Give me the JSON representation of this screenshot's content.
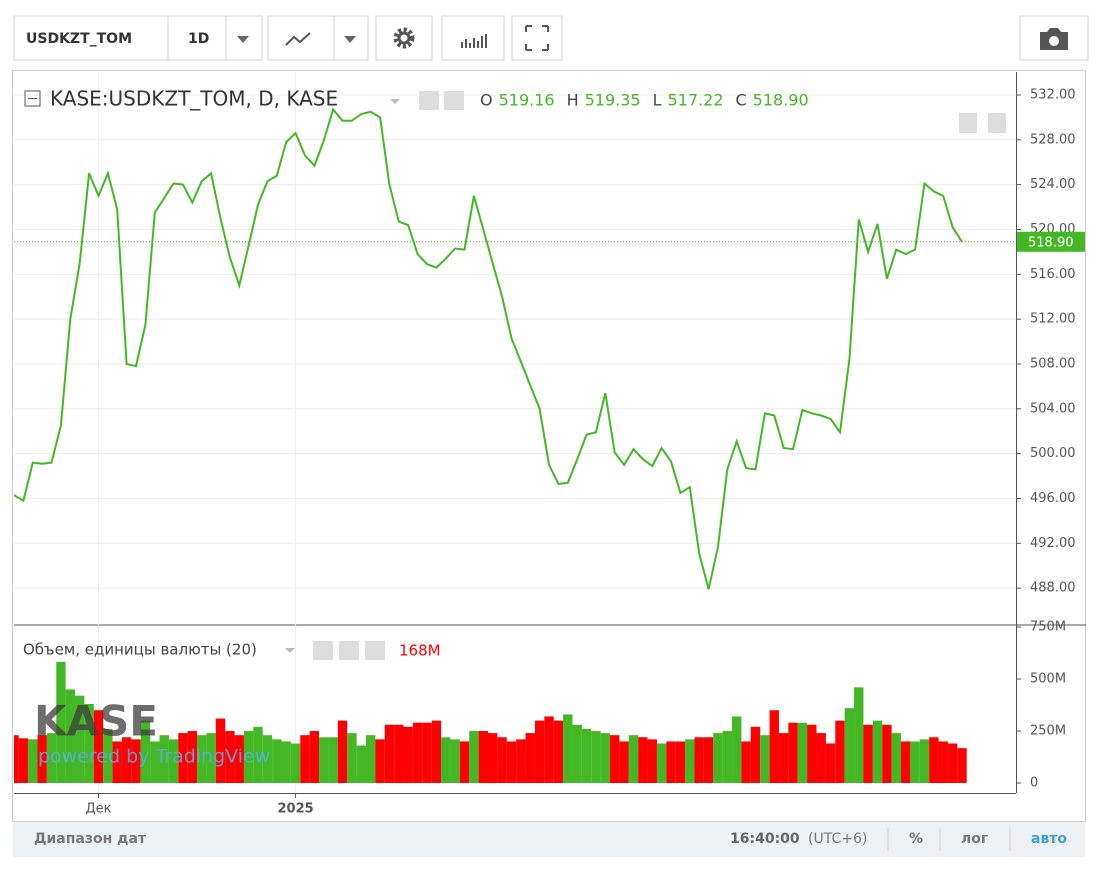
{
  "toolbar": {
    "symbol": "USDKZT_TOM",
    "interval": "1D"
  },
  "chart_data": [
    {
      "type": "line",
      "title": "KASE:USDKZT_TOM, D, KASE",
      "legend_ohlc": [
        {
          "key": "O",
          "value": "519.16"
        },
        {
          "key": "H",
          "value": "519.35"
        },
        {
          "key": "L",
          "value": "517.22"
        },
        {
          "key": "C",
          "value": "518.90"
        }
      ],
      "categories": [
        null,
        null,
        null,
        null,
        null,
        null,
        null,
        null,
        null,
        "Дек",
        null,
        null,
        null,
        null,
        null,
        null,
        null,
        null,
        null,
        null,
        null,
        null,
        null,
        null,
        null,
        null,
        null,
        null,
        null,
        null,
        "2025",
        null,
        null,
        null,
        null,
        null,
        null,
        null,
        null,
        null,
        null,
        null,
        null,
        null,
        null,
        null,
        null,
        null,
        null,
        null,
        null,
        null,
        null,
        null,
        null,
        null,
        null,
        null,
        null,
        null,
        null,
        null,
        null,
        null,
        null,
        null,
        null,
        null,
        null,
        null,
        null,
        null,
        null,
        null,
        null,
        null,
        null,
        null,
        null,
        null,
        null,
        null,
        null,
        null,
        null,
        null,
        null,
        null,
        null,
        null,
        null,
        null,
        null,
        null,
        null,
        null,
        null,
        null,
        null,
        null,
        null,
        null
      ],
      "series": [
        {
          "color": "#44b824",
          "values": [
            496.3,
            495.8,
            499.2,
            499.1,
            499.2,
            502.5,
            512,
            517,
            525,
            523,
            525,
            521.8,
            508,
            507.8,
            511.5,
            521.5,
            522.8,
            524.1,
            524,
            522.4,
            524.3,
            525,
            521,
            517.5,
            515,
            518.6,
            522.2,
            524.3,
            524.8,
            527.8,
            528.6,
            526.6,
            525.7,
            527.9,
            530.7,
            529.7,
            529.7,
            530.3,
            530.5,
            530,
            524,
            520.7,
            520.4,
            517.8,
            516.9,
            516.6,
            517.4,
            518.3,
            518.2,
            523,
            520,
            517,
            514,
            510.3,
            508.2,
            506.1,
            504,
            499,
            497.3,
            497.4,
            499.5,
            501.7,
            501.9,
            505.4,
            500.1,
            499,
            500.4,
            499.5,
            498.9,
            500.5,
            499.3,
            496.5,
            497,
            491.1,
            487.9,
            491.7,
            498.6,
            501.1,
            498.7,
            498.6,
            503.6,
            503.4,
            500.5,
            500.4,
            503.9,
            503.6,
            503.4,
            503.1,
            501.9,
            508.4,
            520.9,
            518,
            520.5,
            515.6,
            518.2,
            517.8,
            518.2,
            524.1,
            523.4,
            523,
            520.2,
            518.9
          ]
        }
      ],
      "ylim": [
        484.8,
        534.05
      ],
      "yticks": [
        {
          "value": 488,
          "label": "488.00"
        },
        {
          "value": 492,
          "label": "492.00"
        },
        {
          "value": 496,
          "label": "496.00"
        },
        {
          "value": 500,
          "label": "500.00"
        },
        {
          "value": 504,
          "label": "504.00"
        },
        {
          "value": 508,
          "label": "508.00"
        },
        {
          "value": 512,
          "label": "512.00"
        },
        {
          "value": 516,
          "label": "516.00"
        },
        {
          "value": 520,
          "label": "520.00"
        },
        {
          "value": 524,
          "label": "524.00"
        },
        {
          "value": 528,
          "label": "528.00"
        },
        {
          "value": 532,
          "label": "532.00"
        }
      ],
      "last_price": {
        "value": 518.9,
        "label": "518.90"
      },
      "grid": true
    },
    {
      "type": "bar",
      "title": "Объем, единицы валюты (20)",
      "study_value": "168M",
      "values": [
        230,
        215,
        210,
        230,
        240,
        582,
        450,
        420,
        380,
        350,
        260,
        200,
        220,
        210,
        300,
        200,
        230,
        210,
        240,
        250,
        230,
        240,
        310,
        250,
        230,
        250,
        270,
        230,
        210,
        200,
        190,
        230,
        250,
        220,
        220,
        300,
        240,
        180,
        230,
        210,
        280,
        280,
        270,
        290,
        290,
        300,
        220,
        210,
        200,
        250,
        250,
        240,
        220,
        200,
        210,
        240,
        300,
        320,
        300,
        330,
        280,
        260,
        250,
        240,
        230,
        200,
        230,
        220,
        210,
        190,
        200,
        200,
        210,
        220,
        220,
        240,
        250,
        320,
        200,
        270,
        230,
        350,
        240,
        290,
        290,
        280,
        240,
        190,
        300,
        360,
        460,
        280,
        300,
        280,
        240,
        200,
        200,
        210,
        220,
        200,
        190,
        168
      ],
      "up_color": "#44b824",
      "down_color": "#ff0000",
      "ylim": [
        -48,
        755
      ],
      "yticks": [
        0,
        {
          "value": 250,
          "label": "250M"
        },
        {
          "value": 500,
          "label": "500M"
        },
        {
          "value": 750,
          "label": "750M"
        }
      ]
    }
  ],
  "watermark": {
    "logo": "KASE",
    "powered": "powered by TradingView"
  },
  "footer": {
    "range": "Диапазон дат",
    "time": "16:40:00",
    "tz": "(UTC+6)",
    "percent": "%",
    "log": "лог",
    "auto": "авто"
  }
}
